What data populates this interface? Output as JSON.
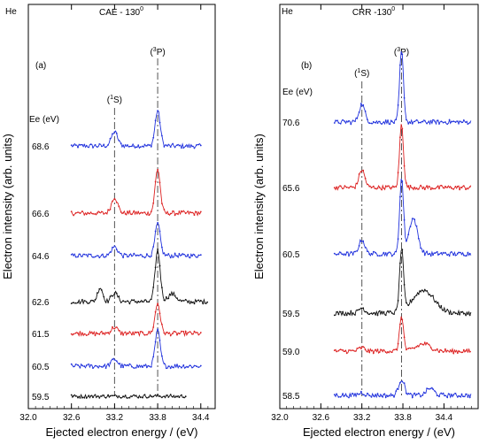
{
  "chart_data": [
    {
      "type": "line",
      "panel": "(a)",
      "gas": "He",
      "title": "CAE - 130",
      "title_sup": "0",
      "xlabel": "Ejected electron energy / (eV)",
      "ylabel": "Electron intensity (arb. units)",
      "xlim": [
        32.0,
        34.6
      ],
      "x_ticks": [
        "32.0",
        "32.6",
        "33.2",
        "33.8",
        "34.4"
      ],
      "energy_header": "Ee (eV)",
      "peak_labels": [
        {
          "pre": "(",
          "sup": "1",
          "post": "S)",
          "x": 33.2
        },
        {
          "pre": "(",
          "sup": "3",
          "post": "P)",
          "x": 33.8
        }
      ],
      "series": [
        {
          "name": "68.6",
          "color": "#2233dd",
          "x_range": [
            32.6,
            34.4
          ]
        },
        {
          "name": "66.6",
          "color": "#dd2222",
          "x_range": [
            32.6,
            34.4
          ]
        },
        {
          "name": "64.6",
          "color": "#2233dd",
          "x_range": [
            32.6,
            34.4
          ]
        },
        {
          "name": "62.6",
          "color": "#111111",
          "x_range": [
            32.6,
            34.5
          ]
        },
        {
          "name": "61.5",
          "color": "#dd2222",
          "x_range": [
            32.6,
            34.4
          ]
        },
        {
          "name": "60.5",
          "color": "#2233dd",
          "x_range": [
            32.6,
            34.4
          ]
        },
        {
          "name": "59.5",
          "color": "#111111",
          "x_range": [
            32.6,
            34.2
          ]
        }
      ]
    },
    {
      "type": "line",
      "panel": "(b)",
      "gas": "He",
      "title": "CRR -130",
      "title_sup": "0",
      "xlabel": "Ejected electron energy / (eV)",
      "ylabel": "Electron intensity (arb. units)",
      "xlim": [
        32.0,
        34.9
      ],
      "x_ticks": [
        "32.0",
        "32.6",
        "33.2",
        "33.8",
        "34.4"
      ],
      "energy_header": "Ee (eV)",
      "peak_labels": [
        {
          "pre": "(",
          "sup": "1",
          "post": "S)",
          "x": 33.2
        },
        {
          "pre": "(",
          "sup": "3",
          "post": "P)",
          "x": 33.78
        }
      ],
      "series": [
        {
          "name": "70.6",
          "color": "#2233dd",
          "x_range": [
            32.8,
            34.8
          ]
        },
        {
          "name": "65.6",
          "color": "#dd2222",
          "x_range": [
            32.8,
            34.8
          ]
        },
        {
          "name": "60.5",
          "color": "#2233dd",
          "x_range": [
            32.8,
            34.8
          ]
        },
        {
          "name": "59.5",
          "color": "#111111",
          "x_range": [
            32.8,
            34.8
          ]
        },
        {
          "name": "59.0",
          "color": "#dd2222",
          "x_range": [
            32.8,
            34.8
          ]
        },
        {
          "name": "58.5",
          "color": "#2233dd",
          "x_range": [
            32.8,
            34.8
          ]
        }
      ]
    }
  ]
}
